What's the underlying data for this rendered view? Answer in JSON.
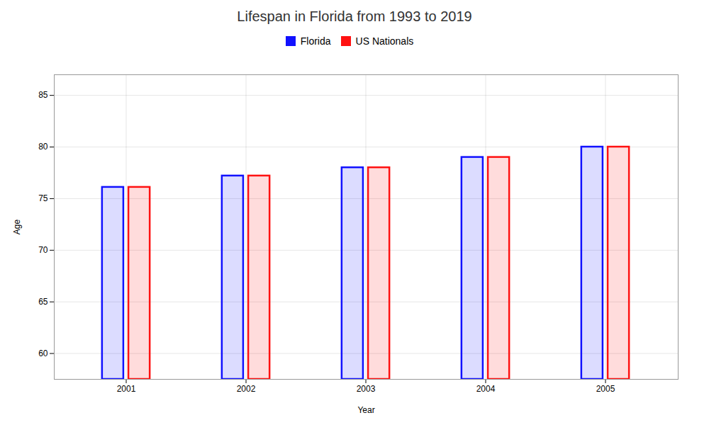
{
  "chart_data": {
    "type": "bar",
    "title": "Lifespan in Florida from 1993 to 2019",
    "xlabel": "Year",
    "ylabel": "Age",
    "categories": [
      "2001",
      "2002",
      "2003",
      "2004",
      "2005"
    ],
    "series": [
      {
        "name": "Florida",
        "color": "#1111ff",
        "values": [
          76.1,
          77.2,
          78.0,
          79.0,
          80.0
        ]
      },
      {
        "name": "US Nationals",
        "color": "#ff1111",
        "values": [
          76.1,
          77.2,
          78.0,
          79.0,
          80.0
        ]
      }
    ],
    "ylim": [
      57.5,
      87
    ],
    "yticks": [
      60,
      65,
      70,
      75,
      80,
      85
    ],
    "grid": true,
    "legend": "top"
  }
}
